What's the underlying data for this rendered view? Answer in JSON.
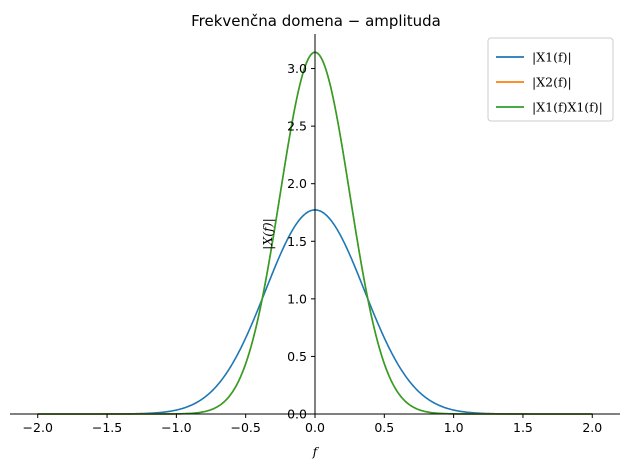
{
  "chart_data": {
    "type": "line",
    "title": "Frekvenčna domena − amplituda",
    "xlabel": "f",
    "ylabel": "|X(f)|",
    "xlim": [
      -2.2,
      2.2
    ],
    "ylim": [
      0.0,
      3.3
    ],
    "x_ticks": [
      "−2.0",
      "−1.5",
      "−1.0",
      "−0.5",
      "0.0",
      "0.5",
      "1.0",
      "1.5",
      "2.0"
    ],
    "y_ticks": [
      "0.0",
      "0.5",
      "1.0",
      "1.5",
      "2.0",
      "2.5",
      "3.0"
    ],
    "grid": false,
    "legend_position": "top-right",
    "x_range": [
      -2.0,
      2.0
    ],
    "series": [
      {
        "name": "|X1(f)|",
        "color": "#1f77b4",
        "peak": 1.7725,
        "gaussian_width": 0.2533
      },
      {
        "name": "|X2(f)|",
        "color": "#ff7f0e",
        "peak": 3.1416,
        "gaussian_width": 0.1267
      },
      {
        "name": "|X1(f)X1(f)|",
        "color": "#2ca02c",
        "peak": 3.1416,
        "gaussian_width": 0.1267
      }
    ]
  }
}
